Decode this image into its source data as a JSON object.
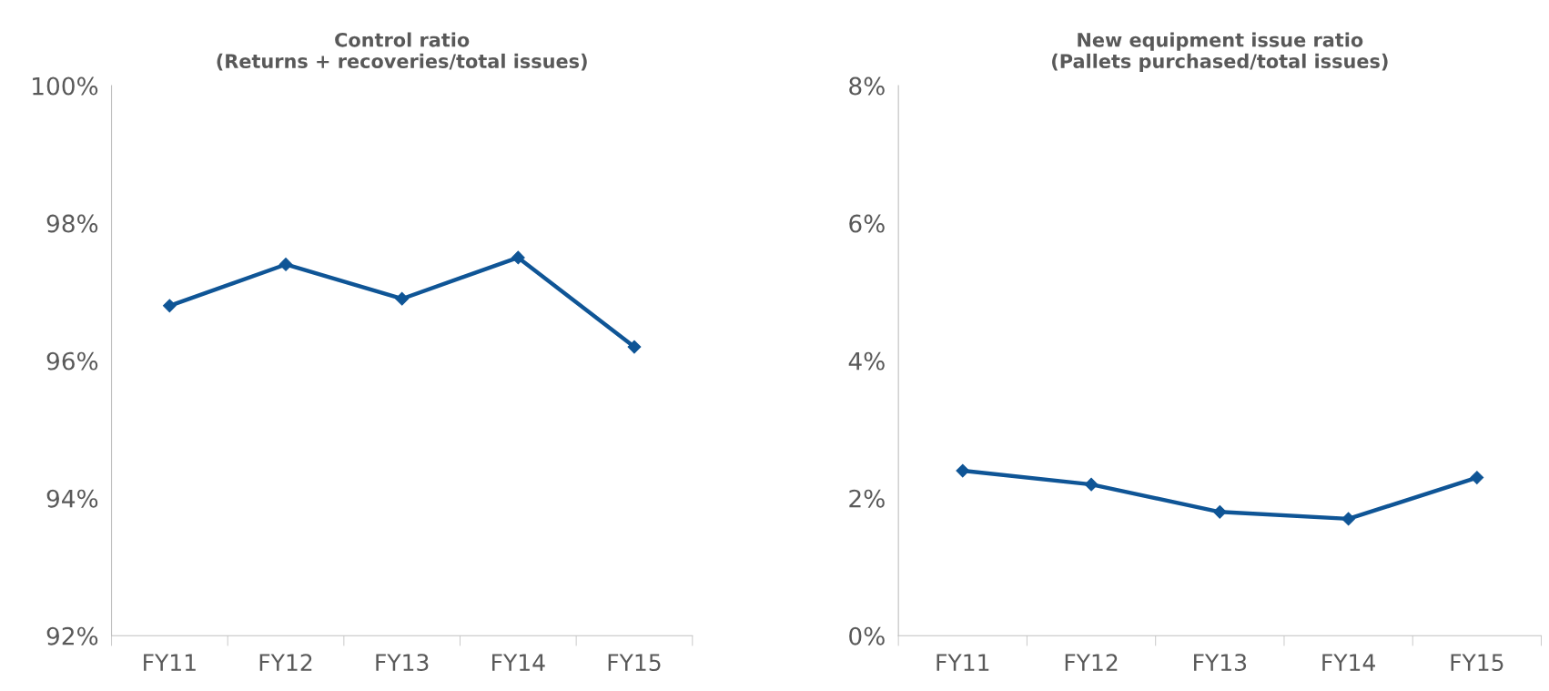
{
  "chart_data": [
    {
      "type": "line",
      "title": "Control ratio\n(Returns + recoveries/total issues)",
      "categories": [
        "FY11",
        "FY12",
        "FY13",
        "FY14",
        "FY15"
      ],
      "series": [
        {
          "color": "#0f5596",
          "values": [
            96.8,
            97.4,
            96.9,
            97.5,
            96.2
          ]
        }
      ],
      "ylim": [
        92,
        100
      ],
      "yticks": [
        {
          "value": 92,
          "label": "92%"
        },
        {
          "value": 94,
          "label": "94%"
        },
        {
          "value": 96,
          "label": "96%"
        },
        {
          "value": 98,
          "label": "98%"
        },
        {
          "value": 100,
          "label": "100%"
        }
      ],
      "marker": "diamond",
      "line_style": "solid",
      "grid": false,
      "legend": false
    },
    {
      "type": "line",
      "title": "New equipment issue ratio\n(Pallets purchased/total issues)",
      "categories": [
        "FY11",
        "FY12",
        "FY13",
        "FY14",
        "FY15"
      ],
      "series": [
        {
          "color": "#0f5596",
          "values": [
            2.4,
            2.2,
            1.8,
            1.7,
            2.3
          ]
        }
      ],
      "ylim": [
        0,
        8
      ],
      "yticks": [
        {
          "value": 0,
          "label": "0%"
        },
        {
          "value": 2,
          "label": "2%"
        },
        {
          "value": 4,
          "label": "4%"
        },
        {
          "value": 6,
          "label": "6%"
        },
        {
          "value": 8,
          "label": "8%"
        }
      ],
      "marker": "diamond",
      "line_style": "solid",
      "grid": false,
      "legend": false
    }
  ]
}
